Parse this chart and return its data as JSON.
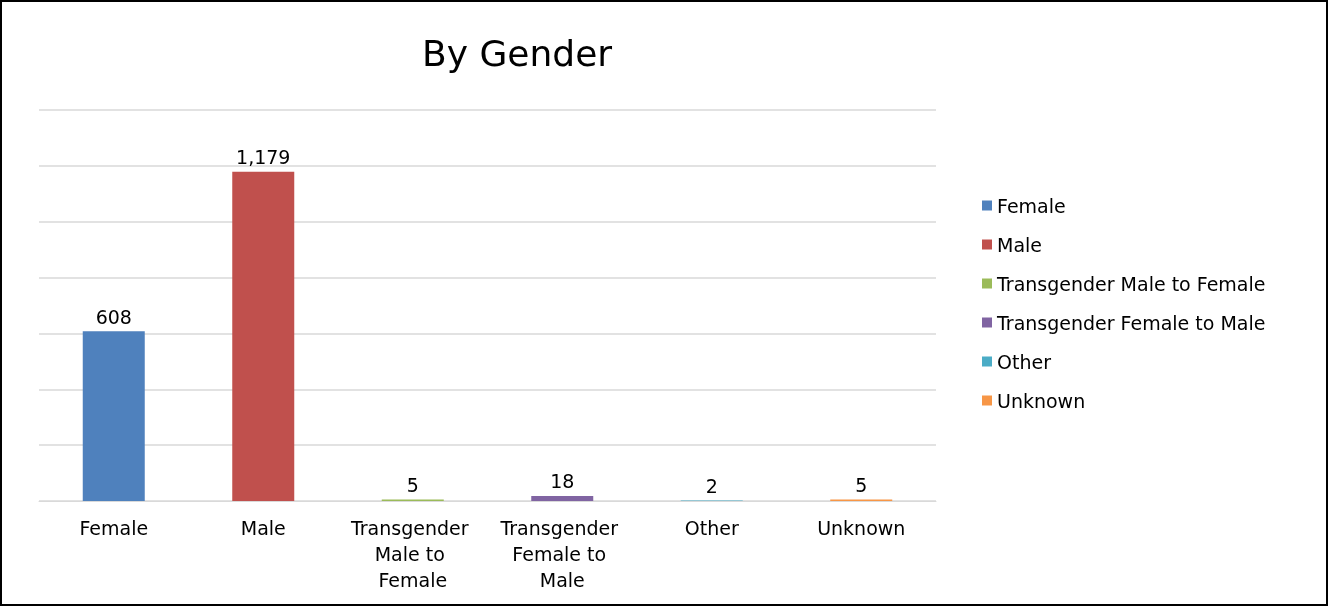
{
  "chart_data": {
    "type": "bar",
    "title": "By Gender",
    "categories": [
      "Female",
      "Male",
      "Transgender Male to Female",
      "Transgender Female to Male",
      "Other",
      "Unknown"
    ],
    "series": [
      {
        "name": "Female",
        "color": "#4f81bd",
        "values": [
          608,
          null,
          null,
          null,
          null,
          null
        ],
        "value_labels": [
          "608",
          null,
          null,
          null,
          null,
          null
        ]
      },
      {
        "name": "Male",
        "color": "#c0504d",
        "values": [
          null,
          1179,
          null,
          null,
          null,
          null
        ],
        "value_labels": [
          null,
          "1,179",
          null,
          null,
          null,
          null
        ]
      },
      {
        "name": "Transgender Male to Female",
        "color": "#9bbb59",
        "values": [
          null,
          null,
          5,
          null,
          null,
          null
        ],
        "value_labels": [
          null,
          null,
          "5",
          null,
          null,
          null
        ]
      },
      {
        "name": "Transgender Female to Male",
        "color": "#8064a2",
        "values": [
          null,
          null,
          null,
          18,
          null,
          null
        ],
        "value_labels": [
          null,
          null,
          null,
          "18",
          null,
          null
        ]
      },
      {
        "name": "Other",
        "color": "#4bacc6",
        "values": [
          null,
          null,
          null,
          null,
          2,
          null
        ],
        "value_labels": [
          null,
          null,
          null,
          null,
          "2",
          null
        ]
      },
      {
        "name": "Unknown",
        "color": "#f79646",
        "values": [
          null,
          null,
          null,
          null,
          null,
          5
        ],
        "value_labels": [
          null,
          null,
          null,
          null,
          null,
          "5"
        ]
      }
    ],
    "ylim": [
      0,
      1400
    ],
    "yticks": [
      {
        "value": 0,
        "label": null
      },
      {
        "value": 200,
        "label": null
      },
      {
        "value": 400,
        "label": null
      },
      {
        "value": 600,
        "label": null
      },
      {
        "value": 800,
        "label": null
      },
      {
        "value": 1000,
        "label": null
      },
      {
        "value": 1200,
        "label": null
      },
      {
        "value": 1400,
        "label": null
      }
    ],
    "tick_labels": "x",
    "grid": "y",
    "legend": "right"
  }
}
